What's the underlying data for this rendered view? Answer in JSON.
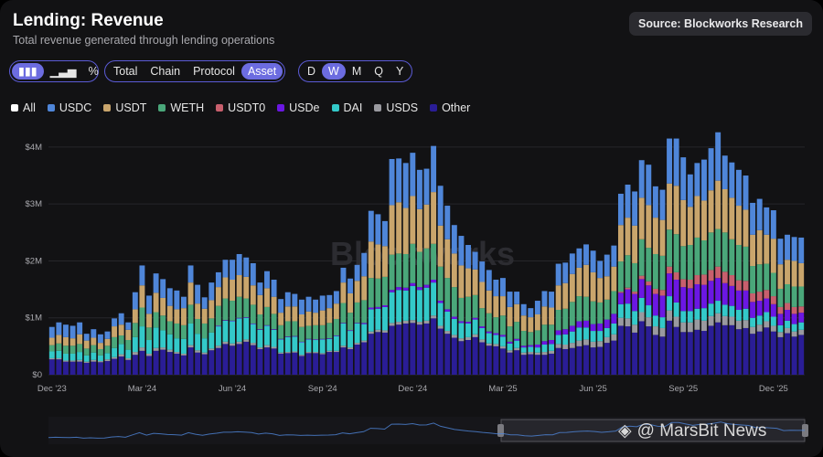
{
  "header": {
    "title": "Lending: Revenue",
    "subtitle": "Total revenue generated through lending operations",
    "source": "Source: Blockworks Research"
  },
  "controls": {
    "chart_types": [
      "bar",
      "line",
      "percent"
    ],
    "chart_type_glyphs": [
      "▮▮▮",
      "▁▃▅",
      "%"
    ],
    "views": [
      "Total",
      "Chain",
      "Protocol",
      "Asset"
    ],
    "active_view": "Asset",
    "periods": [
      "D",
      "W",
      "M",
      "Q",
      "Y"
    ],
    "active_period": "W"
  },
  "watermark": "Blockworks",
  "branding": "@ MarsBit News",
  "chart_data": {
    "type": "bar",
    "stacked": true,
    "title": "Lending: Revenue",
    "ylabel": "",
    "xlabel": "",
    "ylim": [
      0,
      4400000
    ],
    "yticks": [
      {
        "value": 0,
        "label": "$0"
      },
      {
        "value": 1000000,
        "label": "$1M"
      },
      {
        "value": 2000000,
        "label": "$2M"
      },
      {
        "value": 3000000,
        "label": "$3M"
      },
      {
        "value": 4000000,
        "label": "$4M"
      }
    ],
    "xticks": [
      {
        "index": 0,
        "label": "Dec '23"
      },
      {
        "index": 13,
        "label": "Mar '24"
      },
      {
        "index": 26,
        "label": "Jun '24"
      },
      {
        "index": 39,
        "label": "Sep '24"
      },
      {
        "index": 52,
        "label": "Dec '24"
      },
      {
        "index": 65,
        "label": "Mar '25"
      },
      {
        "index": 78,
        "label": "Jun '25"
      },
      {
        "index": 91,
        "label": "Sep '25"
      },
      {
        "index": 104,
        "label": "Dec '25"
      }
    ],
    "legend": [
      "All",
      "USDC",
      "USDT",
      "WETH",
      "USDT0",
      "USDe",
      "DAI",
      "USDS",
      "Other"
    ],
    "colors": {
      "All": "#ffffff",
      "USDC": "#4f86d9",
      "USDT": "#c9a56c",
      "WETH": "#4aa77a",
      "USDT0": "#c85f6d",
      "USDe": "#6b17e3",
      "DAI": "#33c9c9",
      "USDS": "#9a9aa0",
      "Other": "#2a1d96"
    },
    "stack_order": [
      "Other",
      "USDS",
      "DAI",
      "USDe",
      "USDT0",
      "WETH",
      "USDT",
      "USDC"
    ],
    "total": [
      0.84,
      0.92,
      0.88,
      0.86,
      0.92,
      0.72,
      0.8,
      0.71,
      0.76,
      0.99,
      1.08,
      0.92,
      1.45,
      1.92,
      1.39,
      1.78,
      1.68,
      1.52,
      1.48,
      1.37,
      1.92,
      1.58,
      1.36,
      1.62,
      1.8,
      2.02,
      2.02,
      2.12,
      2.06,
      1.96,
      1.62,
      1.82,
      1.67,
      1.33,
      1.45,
      1.42,
      1.32,
      1.37,
      1.32,
      1.39,
      1.4,
      1.47,
      1.88,
      1.69,
      1.93,
      2.14,
      2.88,
      2.82,
      2.7,
      3.79,
      3.8,
      3.72,
      3.9,
      3.6,
      3.62,
      4.02,
      3.32,
      2.97,
      2.63,
      2.44,
      2.28,
      2.16,
      1.99,
      1.84,
      1.67,
      1.7,
      1.46,
      1.46,
      1.24,
      1.17,
      1.31,
      1.47,
      1.46,
      1.95,
      1.97,
      2.13,
      2.22,
      2.29,
      2.18,
      2.0,
      2.11,
      2.27,
      3.18,
      3.34,
      3.22,
      3.77,
      3.69,
      3.31,
      3.25,
      4.15,
      4.15,
      3.82,
      3.52,
      3.72,
      3.78,
      3.98,
      4.26,
      3.87,
      3.73,
      3.6,
      3.5,
      3.02,
      3.09,
      2.98,
      2.89,
      2.39,
      2.46,
      2.42,
      2.41
    ],
    "series": [
      {
        "name": "USDC",
        "values": [
          0.19,
          0.22,
          0.22,
          0.22,
          0.21,
          0.12,
          0.15,
          0.15,
          0.13,
          0.14,
          0.2,
          0.13,
          0.3,
          0.35,
          0.32,
          0.34,
          0.33,
          0.31,
          0.33,
          0.2,
          0.3,
          0.33,
          0.2,
          0.31,
          0.26,
          0.31,
          0.35,
          0.37,
          0.34,
          0.39,
          0.22,
          0.3,
          0.3,
          0.24,
          0.25,
          0.22,
          0.26,
          0.26,
          0.23,
          0.26,
          0.23,
          0.22,
          0.26,
          0.26,
          0.28,
          0.41,
          0.54,
          0.53,
          0.44,
          0.81,
          0.77,
          0.79,
          0.76,
          0.69,
          0.63,
          0.81,
          0.7,
          0.59,
          0.5,
          0.52,
          0.41,
          0.31,
          0.36,
          0.36,
          0.29,
          0.32,
          0.27,
          0.22,
          0.2,
          0.16,
          0.24,
          0.27,
          0.28,
          0.38,
          0.36,
          0.36,
          0.34,
          0.36,
          0.38,
          0.3,
          0.38,
          0.37,
          0.55,
          0.58,
          0.6,
          0.66,
          0.71,
          0.55,
          0.53,
          0.79,
          0.83,
          0.75,
          0.57,
          0.58,
          0.72,
          0.74,
          0.85,
          0.59,
          0.62,
          0.63,
          0.6,
          0.56,
          0.55,
          0.48,
          0.5,
          0.45,
          0.44,
          0.42,
          0.45
        ]
      },
      {
        "name": "USDT",
        "values": [
          0.13,
          0.15,
          0.15,
          0.13,
          0.17,
          0.14,
          0.13,
          0.11,
          0.12,
          0.19,
          0.19,
          0.18,
          0.24,
          0.39,
          0.24,
          0.34,
          0.31,
          0.27,
          0.25,
          0.3,
          0.39,
          0.27,
          0.26,
          0.32,
          0.33,
          0.37,
          0.37,
          0.38,
          0.38,
          0.34,
          0.34,
          0.33,
          0.3,
          0.22,
          0.26,
          0.26,
          0.22,
          0.25,
          0.22,
          0.26,
          0.26,
          0.27,
          0.36,
          0.34,
          0.38,
          0.42,
          0.64,
          0.6,
          0.54,
          0.87,
          0.9,
          0.81,
          0.84,
          0.75,
          0.77,
          0.91,
          0.72,
          0.68,
          0.59,
          0.57,
          0.5,
          0.45,
          0.46,
          0.4,
          0.37,
          0.34,
          0.34,
          0.31,
          0.27,
          0.26,
          0.28,
          0.32,
          0.3,
          0.43,
          0.45,
          0.49,
          0.5,
          0.56,
          0.51,
          0.43,
          0.41,
          0.43,
          0.64,
          0.66,
          0.66,
          0.73,
          0.75,
          0.64,
          0.63,
          0.81,
          0.85,
          0.81,
          0.67,
          0.73,
          0.7,
          0.74,
          0.85,
          0.76,
          0.73,
          0.69,
          0.65,
          0.55,
          0.6,
          0.51,
          0.6,
          0.43,
          0.43,
          0.45,
          0.41
        ]
      },
      {
        "name": "WETH",
        "values": [
          0.11,
          0.13,
          0.14,
          0.14,
          0.14,
          0.12,
          0.13,
          0.11,
          0.13,
          0.19,
          0.15,
          0.17,
          0.25,
          0.33,
          0.22,
          0.27,
          0.26,
          0.23,
          0.26,
          0.24,
          0.33,
          0.26,
          0.26,
          0.25,
          0.35,
          0.38,
          0.35,
          0.37,
          0.33,
          0.33,
          0.26,
          0.32,
          0.27,
          0.24,
          0.27,
          0.26,
          0.26,
          0.23,
          0.25,
          0.24,
          0.27,
          0.29,
          0.35,
          0.31,
          0.36,
          0.4,
          0.52,
          0.5,
          0.5,
          0.62,
          0.59,
          0.59,
          0.69,
          0.62,
          0.64,
          0.63,
          0.6,
          0.55,
          0.52,
          0.41,
          0.44,
          0.4,
          0.32,
          0.32,
          0.28,
          0.34,
          0.27,
          0.3,
          0.26,
          0.23,
          0.25,
          0.29,
          0.27,
          0.36,
          0.36,
          0.42,
          0.44,
          0.42,
          0.4,
          0.37,
          0.35,
          0.4,
          0.53,
          0.57,
          0.5,
          0.64,
          0.59,
          0.61,
          0.6,
          0.65,
          0.67,
          0.58,
          0.61,
          0.66,
          0.6,
          0.66,
          0.66,
          0.69,
          0.63,
          0.62,
          0.6,
          0.48,
          0.48,
          0.46,
          0.41,
          0.32,
          0.33,
          0.36,
          0.35
        ]
      },
      {
        "name": "USDT0",
        "values": [
          0,
          0,
          0,
          0,
          0,
          0,
          0,
          0,
          0,
          0,
          0,
          0,
          0,
          0,
          0,
          0,
          0,
          0,
          0,
          0,
          0,
          0,
          0,
          0,
          0,
          0,
          0,
          0,
          0,
          0,
          0,
          0,
          0,
          0,
          0,
          0,
          0,
          0,
          0,
          0,
          0,
          0,
          0,
          0,
          0,
          0,
          0,
          0,
          0,
          0,
          0,
          0,
          0,
          0,
          0,
          0,
          0,
          0,
          0,
          0,
          0,
          0,
          0,
          0,
          0,
          0,
          0,
          0,
          0,
          0,
          0,
          0,
          0,
          0,
          0,
          0,
          0,
          0,
          0,
          0,
          0,
          0,
          0.02,
          0.03,
          0.04,
          0.06,
          0.07,
          0.09,
          0.1,
          0.12,
          0.13,
          0.14,
          0.15,
          0.16,
          0.18,
          0.19,
          0.2,
          0.2,
          0.19,
          0.18,
          0.17,
          0.15,
          0.16,
          0.15,
          0.14,
          0.12,
          0.12,
          0.12,
          0.11
        ]
      },
      {
        "name": "USDe",
        "values": [
          0,
          0,
          0,
          0,
          0,
          0,
          0,
          0,
          0,
          0,
          0,
          0,
          0,
          0,
          0,
          0,
          0,
          0,
          0,
          0,
          0,
          0,
          0,
          0,
          0.01,
          0.01,
          0.01,
          0.01,
          0.01,
          0.01,
          0.01,
          0.01,
          0.01,
          0.01,
          0.01,
          0.01,
          0.01,
          0.01,
          0.01,
          0.01,
          0.01,
          0.01,
          0.01,
          0.01,
          0.01,
          0.02,
          0.03,
          0.03,
          0.03,
          0.04,
          0.05,
          0.05,
          0.05,
          0.05,
          0.05,
          0.05,
          0.04,
          0.04,
          0.04,
          0.03,
          0.03,
          0.03,
          0.03,
          0.03,
          0.03,
          0.03,
          0.03,
          0.03,
          0.03,
          0.03,
          0.05,
          0.06,
          0.07,
          0.08,
          0.09,
          0.1,
          0.11,
          0.12,
          0.12,
          0.13,
          0.15,
          0.17,
          0.2,
          0.25,
          0.3,
          0.33,
          0.35,
          0.38,
          0.38,
          0.4,
          0.4,
          0.42,
          0.4,
          0.43,
          0.41,
          0.4,
          0.4,
          0.38,
          0.35,
          0.34,
          0.32,
          0.28,
          0.26,
          0.24,
          0.22,
          0.2,
          0.19,
          0.18,
          0.17
        ]
      },
      {
        "name": "DAI",
        "values": [
          0.12,
          0.13,
          0.12,
          0.12,
          0.14,
          0.11,
          0.13,
          0.1,
          0.11,
          0.16,
          0.18,
          0.15,
          0.26,
          0.37,
          0.24,
          0.36,
          0.3,
          0.27,
          0.24,
          0.26,
          0.38,
          0.29,
          0.25,
          0.28,
          0.34,
          0.37,
          0.39,
          0.41,
          0.38,
          0.33,
          0.31,
          0.34,
          0.3,
          0.23,
          0.26,
          0.26,
          0.22,
          0.22,
          0.21,
          0.24,
          0.21,
          0.26,
          0.39,
          0.29,
          0.34,
          0.29,
          0.39,
          0.37,
          0.41,
          0.54,
          0.56,
          0.53,
          0.6,
          0.56,
          0.58,
          0.58,
          0.4,
          0.34,
          0.28,
          0.27,
          0.24,
          0.26,
          0.2,
          0.18,
          0.16,
          0.17,
          0.12,
          0.13,
          0.09,
          0.09,
          0.09,
          0.13,
          0.12,
          0.16,
          0.18,
          0.2,
          0.23,
          0.21,
          0.19,
          0.18,
          0.16,
          0.19,
          0.24,
          0.26,
          0.24,
          0.25,
          0.21,
          0.19,
          0.19,
          0.25,
          0.25,
          0.2,
          0.2,
          0.19,
          0.22,
          0.22,
          0.22,
          0.2,
          0.19,
          0.19,
          0.2,
          0.16,
          0.16,
          0.16,
          0.16,
          0.12,
          0.13,
          0.13,
          0.13
        ]
      },
      {
        "name": "USDS",
        "values": [
          0.02,
          0.02,
          0.02,
          0.02,
          0.03,
          0.02,
          0.03,
          0.02,
          0.03,
          0.03,
          0.04,
          0.03,
          0.05,
          0.06,
          0.04,
          0.05,
          0.04,
          0.04,
          0.03,
          0.03,
          0.04,
          0.04,
          0.03,
          0.03,
          0.04,
          0.04,
          0.04,
          0.04,
          0.04,
          0.04,
          0.03,
          0.04,
          0.03,
          0.02,
          0.02,
          0.02,
          0.02,
          0.02,
          0.02,
          0.02,
          0.02,
          0.02,
          0.03,
          0.03,
          0.03,
          0.03,
          0.04,
          0.04,
          0.04,
          0.05,
          0.05,
          0.05,
          0.05,
          0.05,
          0.05,
          0.05,
          0.05,
          0.05,
          0.05,
          0.05,
          0.05,
          0.05,
          0.05,
          0.04,
          0.04,
          0.04,
          0.04,
          0.04,
          0.04,
          0.04,
          0.04,
          0.05,
          0.05,
          0.07,
          0.08,
          0.09,
          0.1,
          0.1,
          0.1,
          0.1,
          0.1,
          0.11,
          0.14,
          0.14,
          0.14,
          0.16,
          0.16,
          0.15,
          0.15,
          0.18,
          0.18,
          0.17,
          0.17,
          0.18,
          0.18,
          0.17,
          0.16,
          0.16,
          0.15,
          0.15,
          0.14,
          0.12,
          0.12,
          0.11,
          0.1,
          0.09,
          0.09,
          0.09,
          0.09
        ]
      },
      {
        "name": "Other",
        "values": [
          0.27,
          0.27,
          0.23,
          0.23,
          0.23,
          0.21,
          0.23,
          0.22,
          0.24,
          0.28,
          0.32,
          0.26,
          0.35,
          0.42,
          0.33,
          0.42,
          0.44,
          0.4,
          0.37,
          0.34,
          0.48,
          0.39,
          0.36,
          0.43,
          0.47,
          0.54,
          0.51,
          0.54,
          0.58,
          0.52,
          0.45,
          0.48,
          0.46,
          0.37,
          0.38,
          0.39,
          0.33,
          0.38,
          0.38,
          0.36,
          0.4,
          0.4,
          0.48,
          0.45,
          0.53,
          0.57,
          0.72,
          0.75,
          0.74,
          0.86,
          0.88,
          0.9,
          0.91,
          0.88,
          0.9,
          0.99,
          0.81,
          0.72,
          0.65,
          0.59,
          0.61,
          0.66,
          0.57,
          0.51,
          0.5,
          0.46,
          0.39,
          0.43,
          0.35,
          0.36,
          0.35,
          0.35,
          0.37,
          0.47,
          0.45,
          0.47,
          0.5,
          0.52,
          0.48,
          0.49,
          0.56,
          0.6,
          0.86,
          0.85,
          0.74,
          0.94,
          0.85,
          0.7,
          0.67,
          0.95,
          0.84,
          0.75,
          0.75,
          0.79,
          0.77,
          0.86,
          0.92,
          0.87,
          0.87,
          0.8,
          0.82,
          0.72,
          0.76,
          0.83,
          0.76,
          0.66,
          0.73,
          0.67,
          0.7
        ]
      }
    ]
  }
}
